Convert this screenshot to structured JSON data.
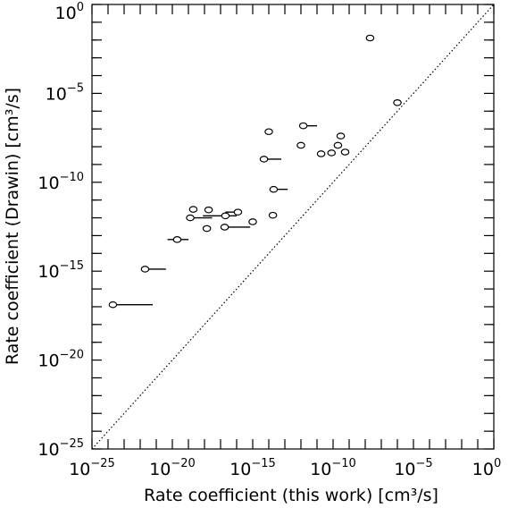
{
  "chart_data": {
    "type": "scatter",
    "xlabel": "Rate coefficient (this work) [cm³/s]",
    "ylabel": "Rate coefficient (Drawin) [cm³/s]",
    "x_scale": "log",
    "y_scale": "log",
    "xlim": [
      1e-25,
      1
    ],
    "ylim": [
      1e-25,
      1
    ],
    "x_ticks": [
      {
        "base": "10",
        "exp": "−25"
      },
      {
        "base": "10",
        "exp": "−20"
      },
      {
        "base": "10",
        "exp": "−15"
      },
      {
        "base": "10",
        "exp": "−10"
      },
      {
        "base": "10",
        "exp": "−5"
      },
      {
        "base": "10",
        "exp": "0"
      }
    ],
    "y_ticks": [
      {
        "base": "10",
        "exp": "−25"
      },
      {
        "base": "10",
        "exp": "−20"
      },
      {
        "base": "10",
        "exp": "−15"
      },
      {
        "base": "10",
        "exp": "−10"
      },
      {
        "base": "10",
        "exp": "−5"
      },
      {
        "base": "10",
        "exp": "0"
      }
    ],
    "reference_line": "y = x (dotted)",
    "points": [
      {
        "x": 2e-08,
        "y": 0.013,
        "x_low": 2e-08,
        "x_high": 2e-08
      },
      {
        "x": 1e-06,
        "y": 3e-06,
        "x_low": 1e-06,
        "x_high": 1e-06
      },
      {
        "x": 1.4e-12,
        "y": 1.5e-07,
        "x_low": 1.4e-12,
        "x_high": 1e-11
      },
      {
        "x": 3e-10,
        "y": 4e-08,
        "x_low": 3e-10,
        "x_high": 3e-10
      },
      {
        "x": 1e-12,
        "y": 1.2e-08,
        "x_low": 1e-12,
        "x_high": 1e-12
      },
      {
        "x": 2e-10,
        "y": 1.2e-08,
        "x_low": 2e-10,
        "x_high": 2e-10
      },
      {
        "x": 1.8e-11,
        "y": 4e-09,
        "x_low": 1.8e-11,
        "x_high": 1.8e-11
      },
      {
        "x": 8e-11,
        "y": 4.5e-09,
        "x_low": 8e-11,
        "x_high": 8e-11
      },
      {
        "x": 5.6e-10,
        "y": 5e-09,
        "x_low": 5.6e-10,
        "x_high": 5.6e-10
      },
      {
        "x": 2e-14,
        "y": 4e-11,
        "x_low": 2e-14,
        "x_high": 1.5e-13
      },
      {
        "x": 5e-15,
        "y": 2e-09,
        "x_low": 5e-15,
        "x_high": 6e-14
      },
      {
        "x": 1e-14,
        "y": 7e-08,
        "x_low": 1e-14,
        "x_high": 1e-14
      },
      {
        "x": 2e-17,
        "y": 1.3e-12,
        "x_low": 8e-19,
        "x_high": 1e-16
      },
      {
        "x": 1.8e-14,
        "y": 1.4e-12,
        "x_low": 1.8e-14,
        "x_high": 1.8e-14
      },
      {
        "x": 1.3e-19,
        "y": 1e-12,
        "x_low": 1.3e-19,
        "x_high": 3e-18
      },
      {
        "x": 1.8e-18,
        "y": 2.8e-12,
        "x_low": 1.8e-18,
        "x_high": 1.8e-18
      },
      {
        "x": 1e-15,
        "y": 6e-13,
        "x_low": 1e-15,
        "x_high": 1e-15
      },
      {
        "x": 2e-19,
        "y": 3e-12,
        "x_low": 2e-19,
        "x_high": 2e-19
      },
      {
        "x": 1.2e-16,
        "y": 2.1e-12,
        "x_low": 2e-17,
        "x_high": 1.2e-16
      },
      {
        "x": 2e-20,
        "y": 6e-14,
        "x_low": 5e-21,
        "x_high": 1e-19
      },
      {
        "x": 1.4e-18,
        "y": 2.5e-13,
        "x_low": 1.4e-18,
        "x_high": 1.4e-18
      },
      {
        "x": 1.8e-17,
        "y": 3e-13,
        "x_low": 1.8e-17,
        "x_high": 7e-16
      },
      {
        "x": 2e-22,
        "y": 1.3e-15,
        "x_low": 2e-22,
        "x_high": 4e-21
      },
      {
        "x": 2e-24,
        "y": 1.3e-17,
        "x_low": 2e-24,
        "x_high": 6e-22
      }
    ]
  }
}
